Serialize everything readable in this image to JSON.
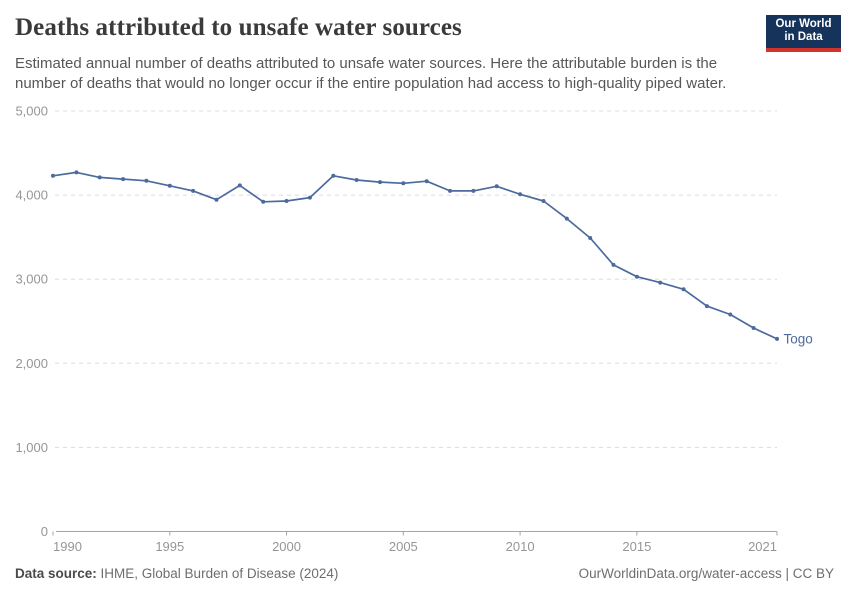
{
  "header": {
    "title": "Deaths attributed to unsafe water sources",
    "subtitle_line1": "Estimated annual number of deaths attributed to unsafe water sources. Here the attributable burden is the",
    "subtitle_line2": "number of deaths that would no longer occur if the entire population had access to high-quality piped water.",
    "logo": {
      "line1": "Our World",
      "line2": "in Data"
    }
  },
  "chart_data": {
    "type": "line",
    "title": "Deaths attributed to unsafe water sources",
    "xlabel": "",
    "ylabel": "",
    "x": [
      1990,
      1991,
      1992,
      1993,
      1994,
      1995,
      1996,
      1997,
      1998,
      1999,
      2000,
      2001,
      2002,
      2003,
      2004,
      2005,
      2006,
      2007,
      2008,
      2009,
      2010,
      2011,
      2012,
      2013,
      2014,
      2015,
      2016,
      2017,
      2018,
      2019,
      2020,
      2021
    ],
    "series": [
      {
        "name": "Togo",
        "values": [
          4230,
          4270,
          4210,
          4190,
          4170,
          4110,
          4050,
          3945,
          4115,
          3920,
          3930,
          3970,
          4230,
          4180,
          4155,
          4140,
          4165,
          4050,
          4050,
          4105,
          4010,
          3930,
          3720,
          3490,
          3170,
          3030,
          2960,
          2880,
          2680,
          2580,
          2420,
          2290
        ],
        "color": "#4c6a9c"
      }
    ],
    "xlim": [
      1990,
      2021
    ],
    "ylim": [
      0,
      5000
    ],
    "xticks": [
      {
        "value": 1990,
        "label": "1990"
      },
      {
        "value": 1995,
        "label": "1995"
      },
      {
        "value": 2000,
        "label": "2000"
      },
      {
        "value": 2005,
        "label": "2005"
      },
      {
        "value": 2010,
        "label": "2010"
      },
      {
        "value": 2015,
        "label": "2015"
      },
      {
        "value": 2021,
        "label": "2021"
      }
    ],
    "yticks": [
      {
        "value": 0,
        "label": "0"
      },
      {
        "value": 1000,
        "label": "1,000"
      },
      {
        "value": 2000,
        "label": "2,000"
      },
      {
        "value": 3000,
        "label": "3,000"
      },
      {
        "value": 4000,
        "label": "4,000"
      },
      {
        "value": 5000,
        "label": "5,000"
      }
    ],
    "grid": "horizontal-dashed",
    "legend_position": "line-end-label",
    "entity_label": "Togo"
  },
  "colors": {
    "line": "#4c6a9c",
    "gridline": "#dcdcdc",
    "axis_line": "#a5a5a5",
    "axis_text": "#969696",
    "logo_navy": "#16335c",
    "logo_red": "#d0342c"
  },
  "footer": {
    "datasource_label": "Data source:",
    "datasource_value": " IHME, Global Burden of Disease (2024)",
    "link": "OurWorldinData.org/water-access",
    "license": " | CC BY"
  }
}
